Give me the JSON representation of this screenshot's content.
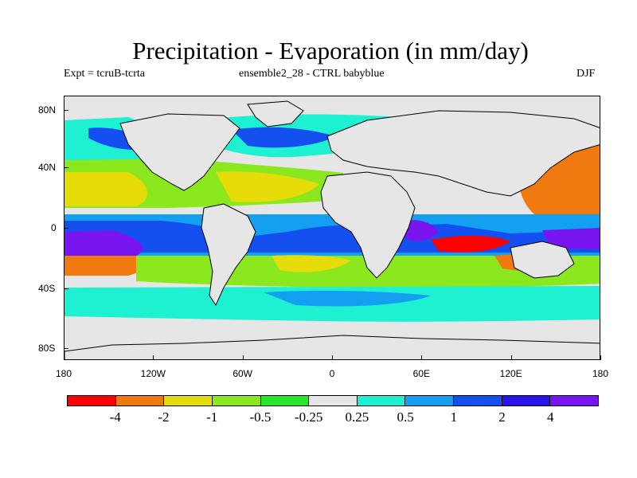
{
  "title": "Precipitation - Evaporation (in mm/day)",
  "subtitle_left": "Expt = tcruB-tcrta",
  "subtitle_center": "ensemble2_28 - CTRL babyblue",
  "season": "DJF",
  "map": {
    "background_color": "#e6e6e6",
    "lat_ticks": [
      "80N",
      "40N",
      "0",
      "40S",
      "80S"
    ],
    "lon_ticks": [
      "180",
      "120W",
      "60W",
      "0",
      "60E",
      "120E",
      "180"
    ]
  },
  "colorbar": {
    "colors": [
      "#ff0000",
      "#f07a10",
      "#e6dc0a",
      "#8ce81e",
      "#28e628",
      "#e6e6e6",
      "#1ef0d2",
      "#14a0f0",
      "#1450f0",
      "#2814e6",
      "#7814f0"
    ],
    "labels": [
      "-4",
      "-2",
      "-1",
      "-0.5",
      "-0.25",
      "0.25",
      "0.5",
      "1",
      "2",
      "4"
    ]
  }
}
